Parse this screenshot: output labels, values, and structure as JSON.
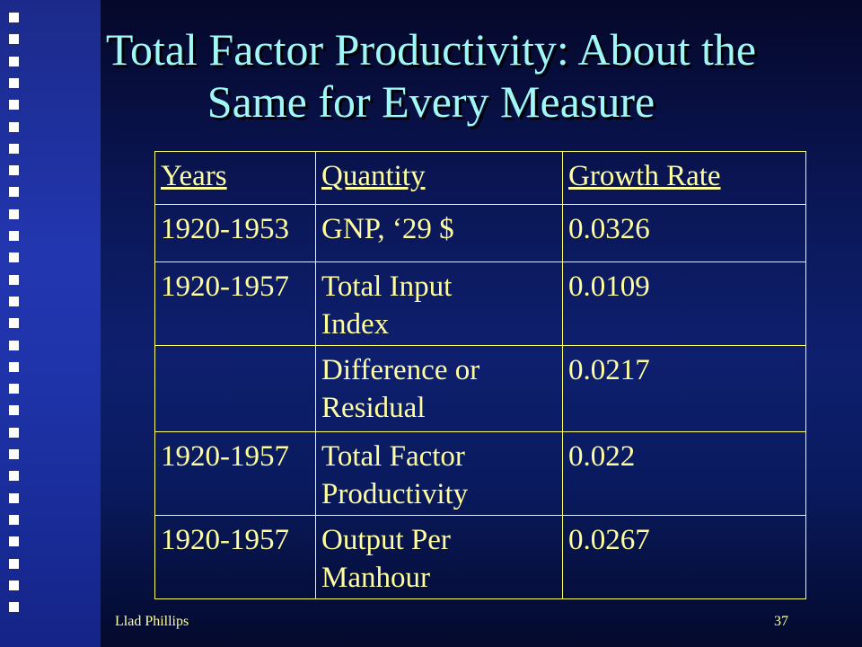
{
  "slide": {
    "title_line1": "Total Factor Productivity: About the",
    "title_line2": "Same for Every Measure"
  },
  "table": {
    "headers": [
      "Years",
      "Quantity",
      "Growth Rate"
    ],
    "rows": [
      {
        "years": "1920-1953",
        "quantity_line1": "GNP, ‘29 $",
        "quantity_line2": "",
        "rate": "0.0326"
      },
      {
        "years": "1920-1957",
        "quantity_line1": "Total Input",
        "quantity_line2": "Index",
        "rate": "0.0109"
      },
      {
        "years": "",
        "quantity_line1": "Difference or",
        "quantity_line2": "Residual",
        "rate": "0.0217"
      },
      {
        "years": "1920-1957",
        "quantity_line1": "Total Factor",
        "quantity_line2": "Productivity",
        "rate": "0.022"
      },
      {
        "years": "1920-1957",
        "quantity_line1": "Output Per",
        "quantity_line2": "Manhour",
        "rate": "0.0267"
      }
    ]
  },
  "footer": {
    "author": "Llad Phillips",
    "page_number": "37"
  },
  "colors": {
    "title": "#9ff7f7",
    "table_text": "#ffff9e",
    "table_border": "#ffff66",
    "sidebar": "#2236b0"
  }
}
